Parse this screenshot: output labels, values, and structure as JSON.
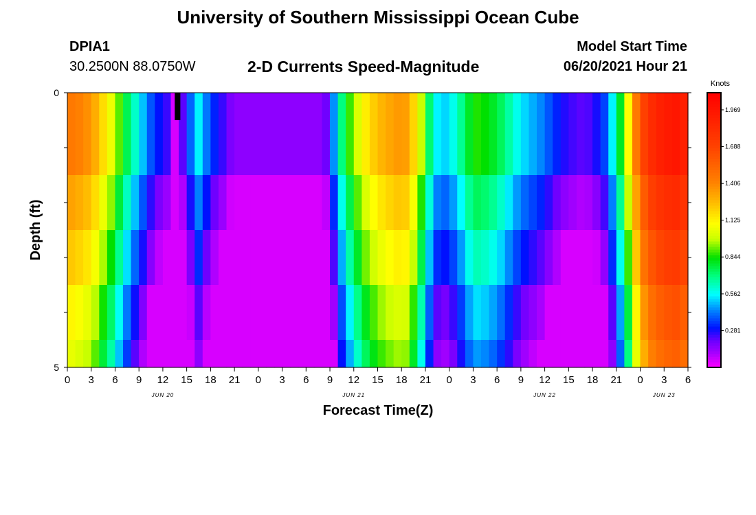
{
  "header": {
    "title": "University of Southern Mississippi Ocean Cube",
    "station_name": "DPIA1",
    "station_coords": "30.2500N  88.0750W",
    "chart_title": "2-D Currents Speed-Magnitude",
    "model_label": "Model Start Time",
    "model_time": "06/20/2021 Hour 21"
  },
  "footer": {
    "title": "University of Southern Mississippi Ocean Cube"
  },
  "chart_data": {
    "type": "heatmap",
    "title": "2-D Currents Speed-Magnitude",
    "xlabel": "Forecast Time(Z)",
    "ylabel": "Depth (ft)",
    "x_start_hour": 0,
    "x_end_hour": 78,
    "x_tick_labels": [
      "0",
      "3",
      "6",
      "9",
      "12",
      "15",
      "18",
      "21",
      "0",
      "3",
      "6",
      "9",
      "12",
      "15",
      "18",
      "21",
      "0",
      "3",
      "6",
      "9",
      "12",
      "15",
      "18",
      "21",
      "0",
      "3",
      "6"
    ],
    "date_labels": [
      {
        "label": "JUN 20",
        "hour": 12
      },
      {
        "label": "JUN 21",
        "hour": 36
      },
      {
        "label": "JUN 22",
        "hour": 60
      },
      {
        "label": "JUN 23",
        "hour": 75
      }
    ],
    "y_range": [
      0,
      5
    ],
    "y_tick_labels": [
      {
        "label": "0",
        "value": 0
      },
      {
        "label": "5",
        "value": 5
      }
    ],
    "depth_layers": [
      {
        "top": 0.0,
        "bottom": 0.5,
        "offset": 0.0
      },
      {
        "top": 0.5,
        "bottom": 1.5,
        "offset": 0.0
      },
      {
        "top": 1.5,
        "bottom": 2.5,
        "offset": -0.12
      },
      {
        "top": 2.5,
        "bottom": 3.5,
        "offset": -0.22
      },
      {
        "top": 3.5,
        "bottom": 4.5,
        "offset": -0.33
      },
      {
        "top": 4.5,
        "bottom": 5.0,
        "offset": -0.4
      }
    ],
    "surface_speed_knots": [
      1.45,
      1.42,
      1.38,
      1.3,
      1.18,
      1.06,
      0.9,
      0.75,
      0.62,
      0.5,
      0.38,
      0.3,
      0.25,
      0.05,
      0.22,
      0.4,
      0.55,
      0.42,
      0.32,
      0.25,
      0.18,
      0.15,
      0.15,
      0.15,
      0.15,
      0.15,
      0.15,
      0.15,
      0.15,
      0.15,
      0.15,
      0.15,
      0.2,
      0.45,
      0.7,
      0.88,
      1.02,
      1.14,
      1.22,
      1.28,
      1.32,
      1.35,
      1.34,
      1.2,
      0.98,
      0.72,
      0.55,
      0.52,
      0.58,
      0.68,
      0.8,
      0.86,
      0.84,
      0.8,
      0.74,
      0.66,
      0.58,
      0.52,
      0.48,
      0.44,
      0.38,
      0.32,
      0.27,
      0.24,
      0.22,
      0.23,
      0.28,
      0.36,
      0.55,
      0.8,
      1.1,
      1.45,
      1.7,
      1.83,
      1.9,
      1.94,
      1.96,
      1.9
    ],
    "anomaly": {
      "hour_start": 13.5,
      "hour_end": 14.2,
      "depth_top": 0.0,
      "depth_bottom": 0.5,
      "color": "#000000"
    },
    "colorbar": {
      "unit": "Knots",
      "min": 0.0,
      "max": 2.1,
      "tick_values": [
        1.969,
        1.688,
        1.406,
        1.125,
        0.844,
        0.562,
        0.281
      ],
      "tick_labels": [
        "1.969",
        "1.688",
        "1.406",
        "1.125",
        "0.844",
        "0.562",
        "0.281"
      ],
      "color_stops": [
        {
          "value": 0.0,
          "color": "#ff00ff"
        },
        {
          "value": 0.12,
          "color": "#a000ff"
        },
        {
          "value": 0.2,
          "color": "#7000ff"
        },
        {
          "value": 0.3,
          "color": "#0010ff"
        },
        {
          "value": 0.45,
          "color": "#0090ff"
        },
        {
          "value": 0.56,
          "color": "#00ffff"
        },
        {
          "value": 0.7,
          "color": "#00ff80"
        },
        {
          "value": 0.84,
          "color": "#00e000"
        },
        {
          "value": 0.98,
          "color": "#c8ff00"
        },
        {
          "value": 1.1,
          "color": "#ffff00"
        },
        {
          "value": 1.25,
          "color": "#ffc000"
        },
        {
          "value": 1.42,
          "color": "#ff8000"
        },
        {
          "value": 1.7,
          "color": "#ff4000"
        },
        {
          "value": 2.1,
          "color": "#ff0000"
        }
      ]
    }
  }
}
